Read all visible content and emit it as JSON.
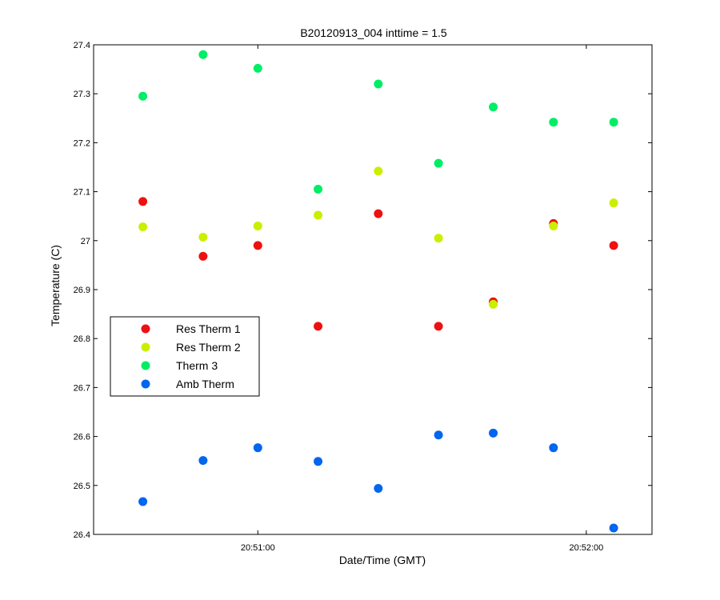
{
  "chart_data": {
    "type": "scatter",
    "title": "B20120913_004 inttime = 1.5",
    "xlabel": "Date/Time (GMT)",
    "ylabel": "Temperature (C)",
    "x_unit": "time",
    "xlim": [
      "20:50:30",
      "20:52:12"
    ],
    "ylim": [
      26.4,
      27.4
    ],
    "y_ticks": [
      26.4,
      26.5,
      26.6,
      26.7,
      26.8,
      26.9,
      27,
      27.1,
      27.2,
      27.3,
      27.4
    ],
    "x_ticks": [
      "20:51:00",
      "20:52:00"
    ],
    "x": [
      "20:50:39",
      "20:50:50",
      "20:51:00",
      "20:51:11",
      "20:51:22",
      "20:51:33",
      "20:51:43",
      "20:51:54",
      "20:52:05"
    ],
    "series": [
      {
        "name": "Res Therm 1",
        "color": "#ee1111",
        "values": [
          27.08,
          26.968,
          26.99,
          26.825,
          27.055,
          26.825,
          26.875,
          27.035,
          26.99
        ]
      },
      {
        "name": "Res Therm 2",
        "color": "#ccee00",
        "values": [
          27.028,
          27.007,
          27.03,
          27.052,
          27.142,
          27.005,
          26.87,
          27.03,
          27.077
        ]
      },
      {
        "name": "Therm 3",
        "color": "#00ee66",
        "values": [
          27.295,
          27.38,
          27.352,
          27.105,
          27.32,
          27.158,
          27.273,
          27.242,
          27.242
        ]
      },
      {
        "name": "Amb Therm",
        "color": "#0066ee",
        "values": [
          26.467,
          26.551,
          26.577,
          26.549,
          26.494,
          26.603,
          26.607,
          26.577,
          26.413
        ]
      }
    ],
    "grid": false,
    "legend_position": "middle-left",
    "marker": "filled-circle"
  }
}
